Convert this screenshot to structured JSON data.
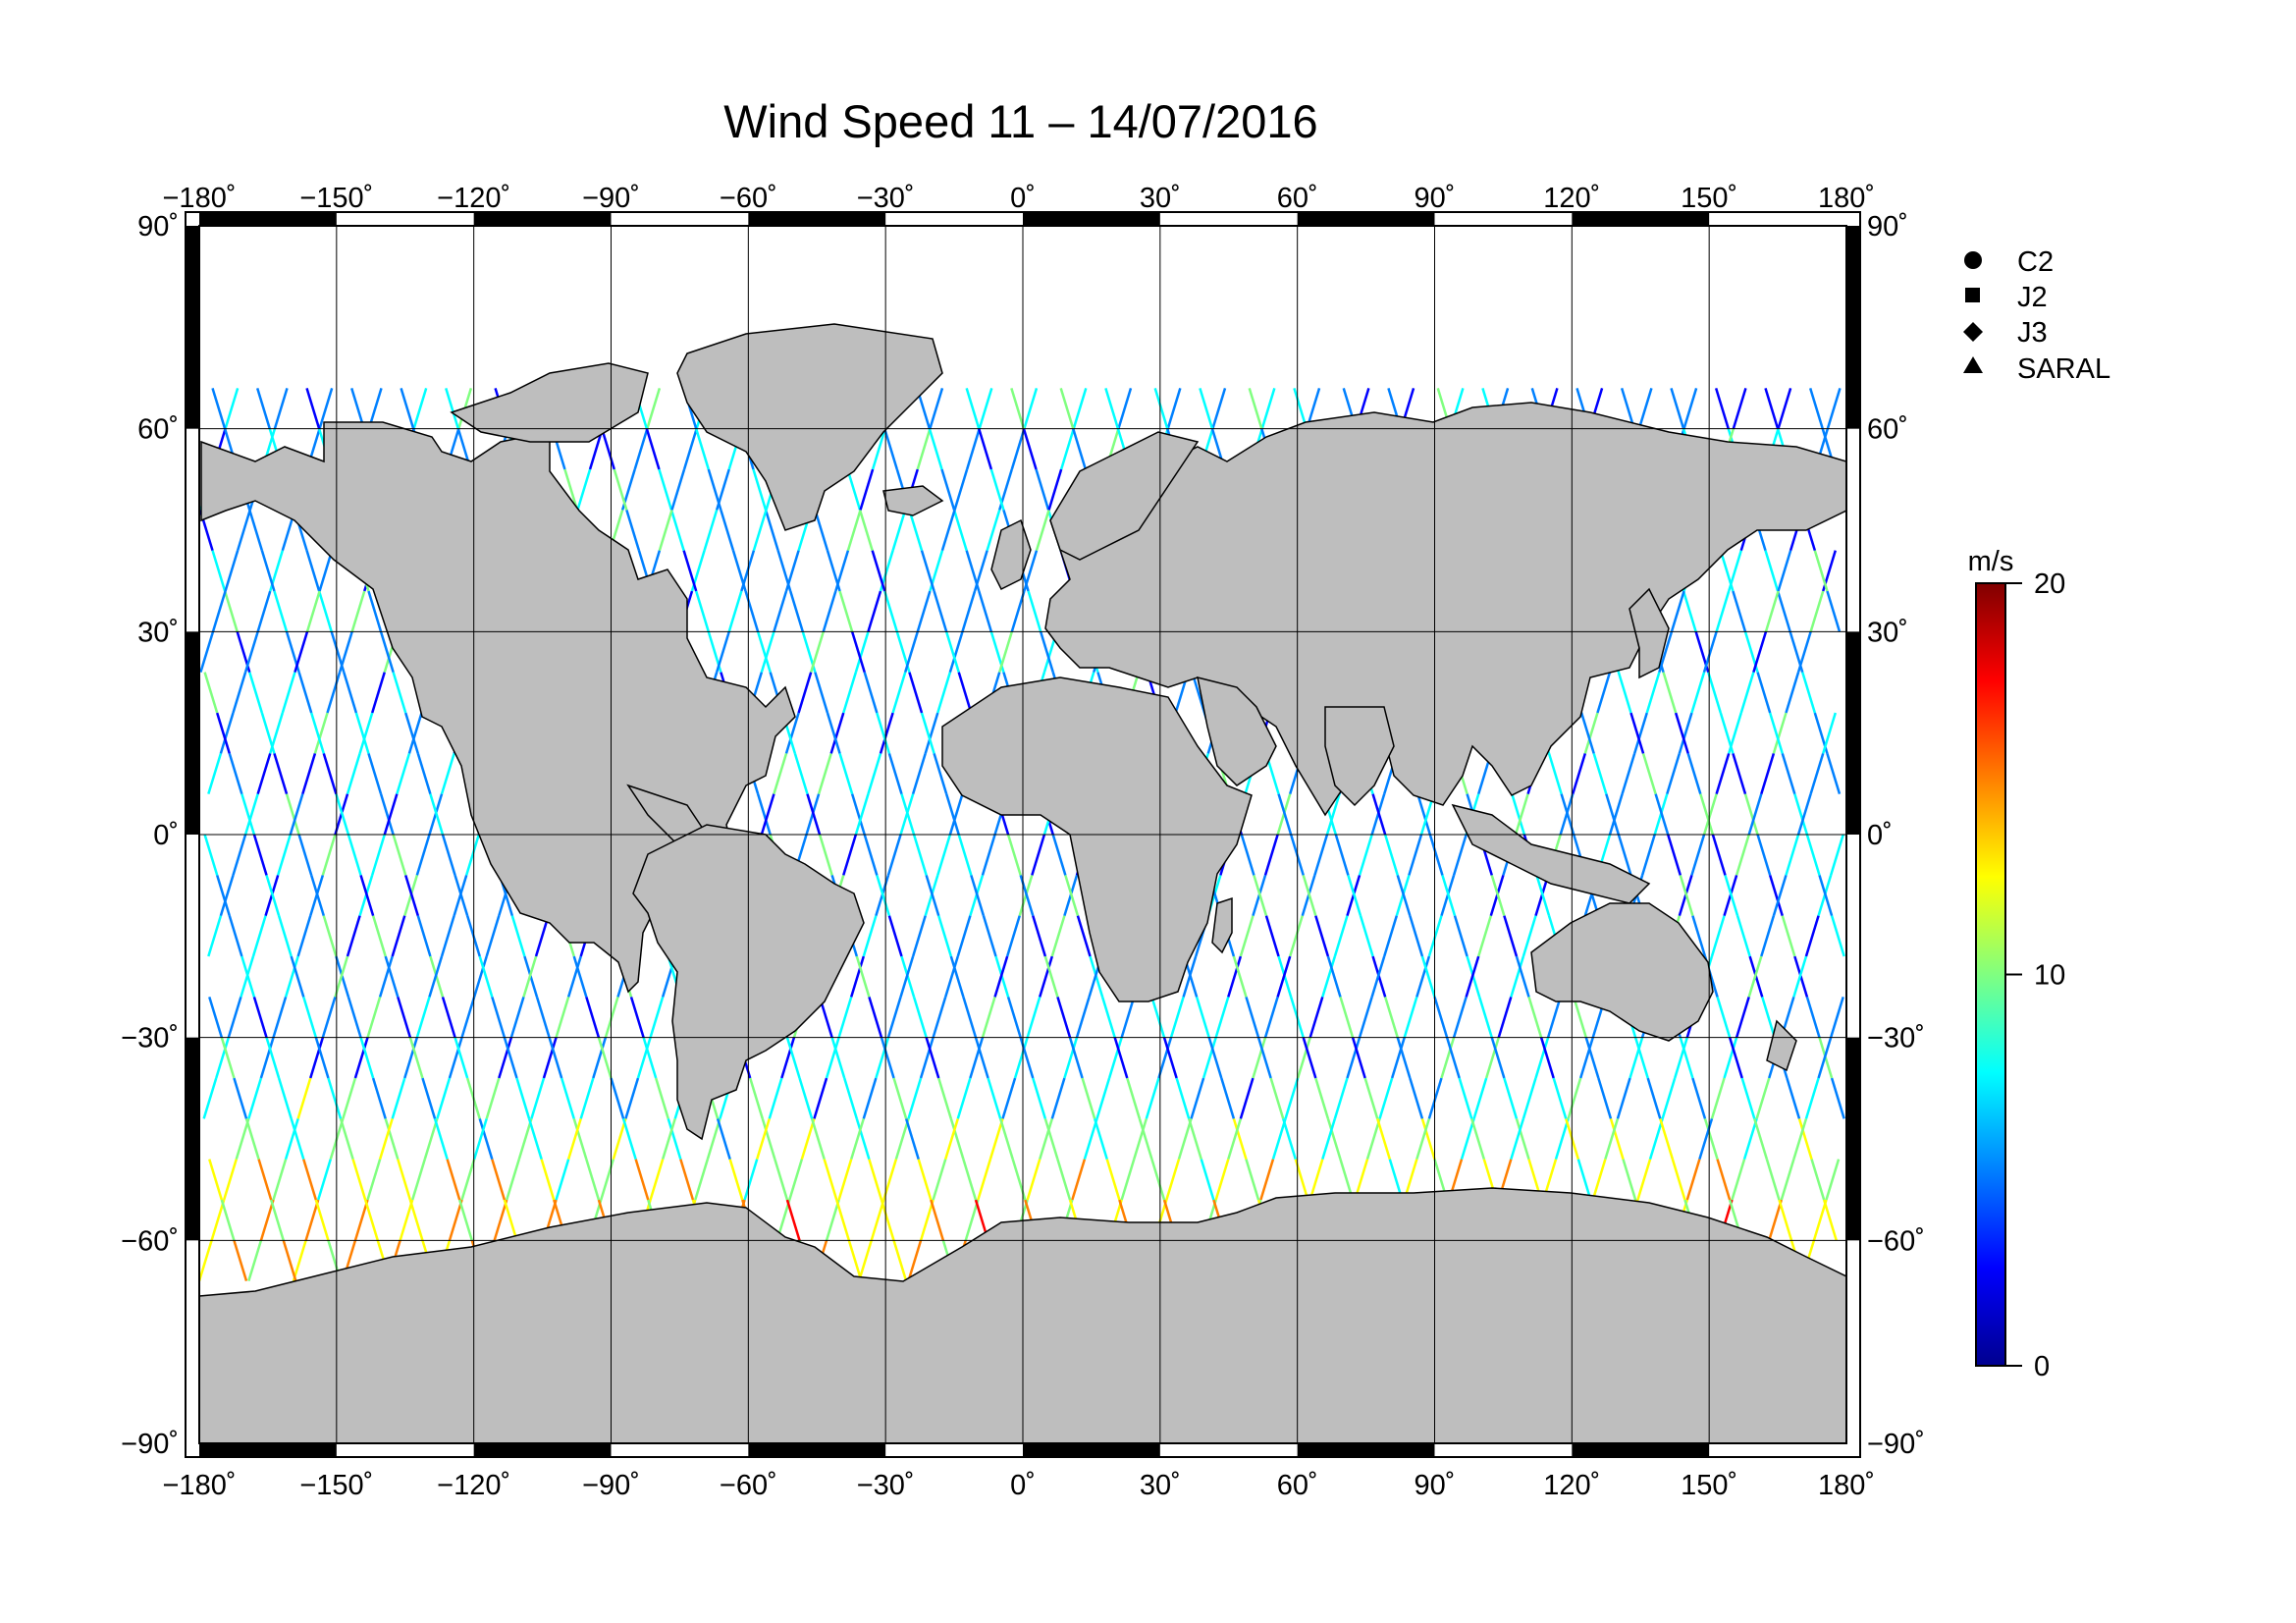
{
  "title": "Wind Speed 11 – 14/07/2016",
  "map": {
    "lon_range": [
      -180,
      180
    ],
    "lat_range": [
      -90,
      90
    ],
    "lon_ticks": [
      "−180˚",
      "−150˚",
      "−120˚",
      "−90˚",
      "−60˚",
      "−30˚",
      "0˚",
      "30˚",
      "60˚",
      "90˚",
      "120˚",
      "150˚",
      "180˚"
    ],
    "lat_ticks": [
      "90˚",
      "60˚",
      "30˚",
      "0˚",
      "−30˚",
      "−60˚",
      "−90˚"
    ],
    "lon_values": [
      -180,
      -150,
      -120,
      -90,
      -60,
      -30,
      0,
      30,
      60,
      90,
      120,
      150,
      180
    ],
    "lat_values": [
      90,
      60,
      30,
      0,
      -30,
      -60,
      -90
    ],
    "land_color": "#bebebe",
    "ocean_color": "#ffffff",
    "grid": true
  },
  "legend": {
    "placement": "top-right",
    "items": [
      {
        "label": "C2",
        "symbol": "circle-icon"
      },
      {
        "label": "J2",
        "symbol": "square-icon"
      },
      {
        "label": "J3",
        "symbol": "diamond-icon"
      },
      {
        "label": "SARAL",
        "symbol": "triangle-icon"
      }
    ]
  },
  "colorbar": {
    "unit": "m/s",
    "min": 0,
    "max": 20,
    "tick_labels": [
      "20",
      "10",
      "0"
    ],
    "tick_values": [
      20,
      10,
      0
    ],
    "colormap": [
      "#00008f",
      "#0000ff",
      "#0080ff",
      "#00ffff",
      "#80ff80",
      "#ffff00",
      "#ff8000",
      "#ff0000",
      "#800000"
    ]
  }
}
